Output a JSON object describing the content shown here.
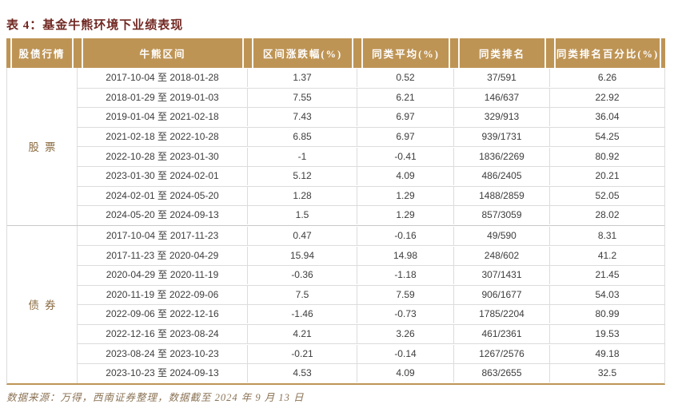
{
  "title": "表 4：基金牛熊环境下业绩表现",
  "footer": "数据来源：万得，西南证券整理，数据截至 2024 年 9 月 13 日",
  "colors": {
    "header_bg": "#BE9455",
    "title_text": "#712822",
    "section_label_text": "#8A6B40",
    "footer_text": "#8B7355"
  },
  "table": {
    "headers": [
      "股债行情",
      "牛熊区间",
      "区间涨跌幅(%)",
      "同类平均(%)",
      "同类排名",
      "同类排名百分比(%)"
    ],
    "sections": [
      {
        "label": "股票",
        "rows": [
          {
            "period": "2017-10-04 至 2018-01-28",
            "change": "1.37",
            "avg": "0.52",
            "rank": "37/591",
            "pct": "6.26"
          },
          {
            "period": "2018-01-29 至 2019-01-03",
            "change": "7.55",
            "avg": "6.21",
            "rank": "146/637",
            "pct": "22.92"
          },
          {
            "period": "2019-01-04 至 2021-02-18",
            "change": "7.43",
            "avg": "6.97",
            "rank": "329/913",
            "pct": "36.04"
          },
          {
            "period": "2021-02-18 至 2022-10-28",
            "change": "6.85",
            "avg": "6.97",
            "rank": "939/1731",
            "pct": "54.25"
          },
          {
            "period": "2022-10-28 至 2023-01-30",
            "change": "-1",
            "avg": "-0.41",
            "rank": "1836/2269",
            "pct": "80.92"
          },
          {
            "period": "2023-01-30 至 2024-02-01",
            "change": "5.12",
            "avg": "4.09",
            "rank": "486/2405",
            "pct": "20.21"
          },
          {
            "period": "2024-02-01 至 2024-05-20",
            "change": "1.28",
            "avg": "1.29",
            "rank": "1488/2859",
            "pct": "52.05"
          },
          {
            "period": "2024-05-20 至 2024-09-13",
            "change": "1.5",
            "avg": "1.29",
            "rank": "857/3059",
            "pct": "28.02"
          }
        ]
      },
      {
        "label": "债券",
        "rows": [
          {
            "period": "2017-10-04 至 2017-11-23",
            "change": "0.47",
            "avg": "-0.16",
            "rank": "49/590",
            "pct": "8.31"
          },
          {
            "period": "2017-11-23 至 2020-04-29",
            "change": "15.94",
            "avg": "14.98",
            "rank": "248/602",
            "pct": "41.2"
          },
          {
            "period": "2020-04-29 至 2020-11-19",
            "change": "-0.36",
            "avg": "-1.18",
            "rank": "307/1431",
            "pct": "21.45"
          },
          {
            "period": "2020-11-19 至 2022-09-06",
            "change": "7.5",
            "avg": "7.59",
            "rank": "906/1677",
            "pct": "54.03"
          },
          {
            "period": "2022-09-06 至 2022-12-16",
            "change": "-1.46",
            "avg": "-0.73",
            "rank": "1785/2204",
            "pct": "80.99"
          },
          {
            "period": "2022-12-16 至 2023-08-24",
            "change": "4.21",
            "avg": "3.26",
            "rank": "461/2361",
            "pct": "19.53"
          },
          {
            "period": "2023-08-24 至 2023-10-23",
            "change": "-0.21",
            "avg": "-0.14",
            "rank": "1267/2576",
            "pct": "49.18"
          },
          {
            "period": "2023-10-23 至 2024-09-13",
            "change": "4.53",
            "avg": "4.09",
            "rank": "863/2655",
            "pct": "32.5"
          }
        ]
      }
    ]
  }
}
